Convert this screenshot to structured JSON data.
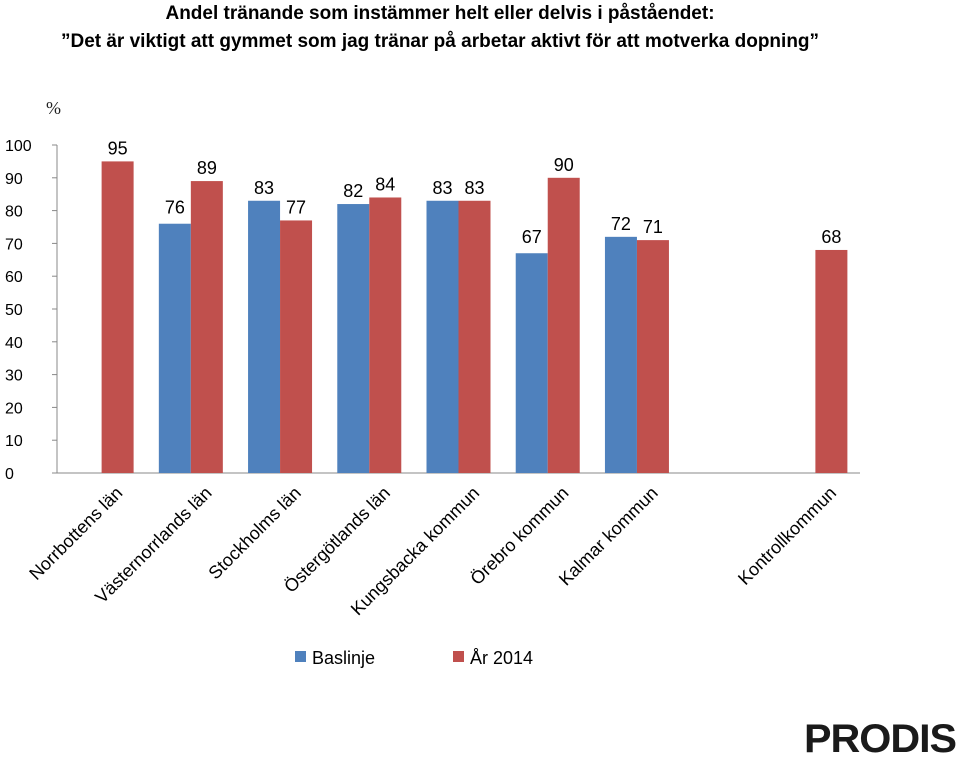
{
  "chart_data": {
    "type": "bar",
    "title": "Andel tränande som instämmer helt eller delvis i påståendet:",
    "subtitle": "”Det är viktigt att gymmet som jag tränar på arbetar aktivt för att motverka dopning”",
    "ylabel": "%",
    "xlabel": "",
    "ylim": [
      0,
      100
    ],
    "yticks": [
      0,
      10,
      20,
      30,
      40,
      50,
      60,
      70,
      80,
      90,
      100
    ],
    "grid": false,
    "legend_position": "bottom",
    "categories": [
      "Norrbottens län",
      "Västernorrlands län",
      "Stockholms län",
      "Östergötlands län",
      "Kungsbacka kommun",
      "Örebro kommun",
      "Kalmar kommun",
      "",
      "Kontrollkommun"
    ],
    "series": [
      {
        "name": "Baslinje",
        "color": "#4f81bd",
        "values": [
          null,
          76,
          83,
          82,
          83,
          67,
          72,
          null,
          null
        ]
      },
      {
        "name": "År 2014",
        "color": "#c0504d",
        "values": [
          95,
          89,
          77,
          84,
          83,
          90,
          71,
          null,
          68
        ]
      }
    ]
  },
  "logo": {
    "text": "PRODIS",
    "color": "#1a1a1a"
  }
}
